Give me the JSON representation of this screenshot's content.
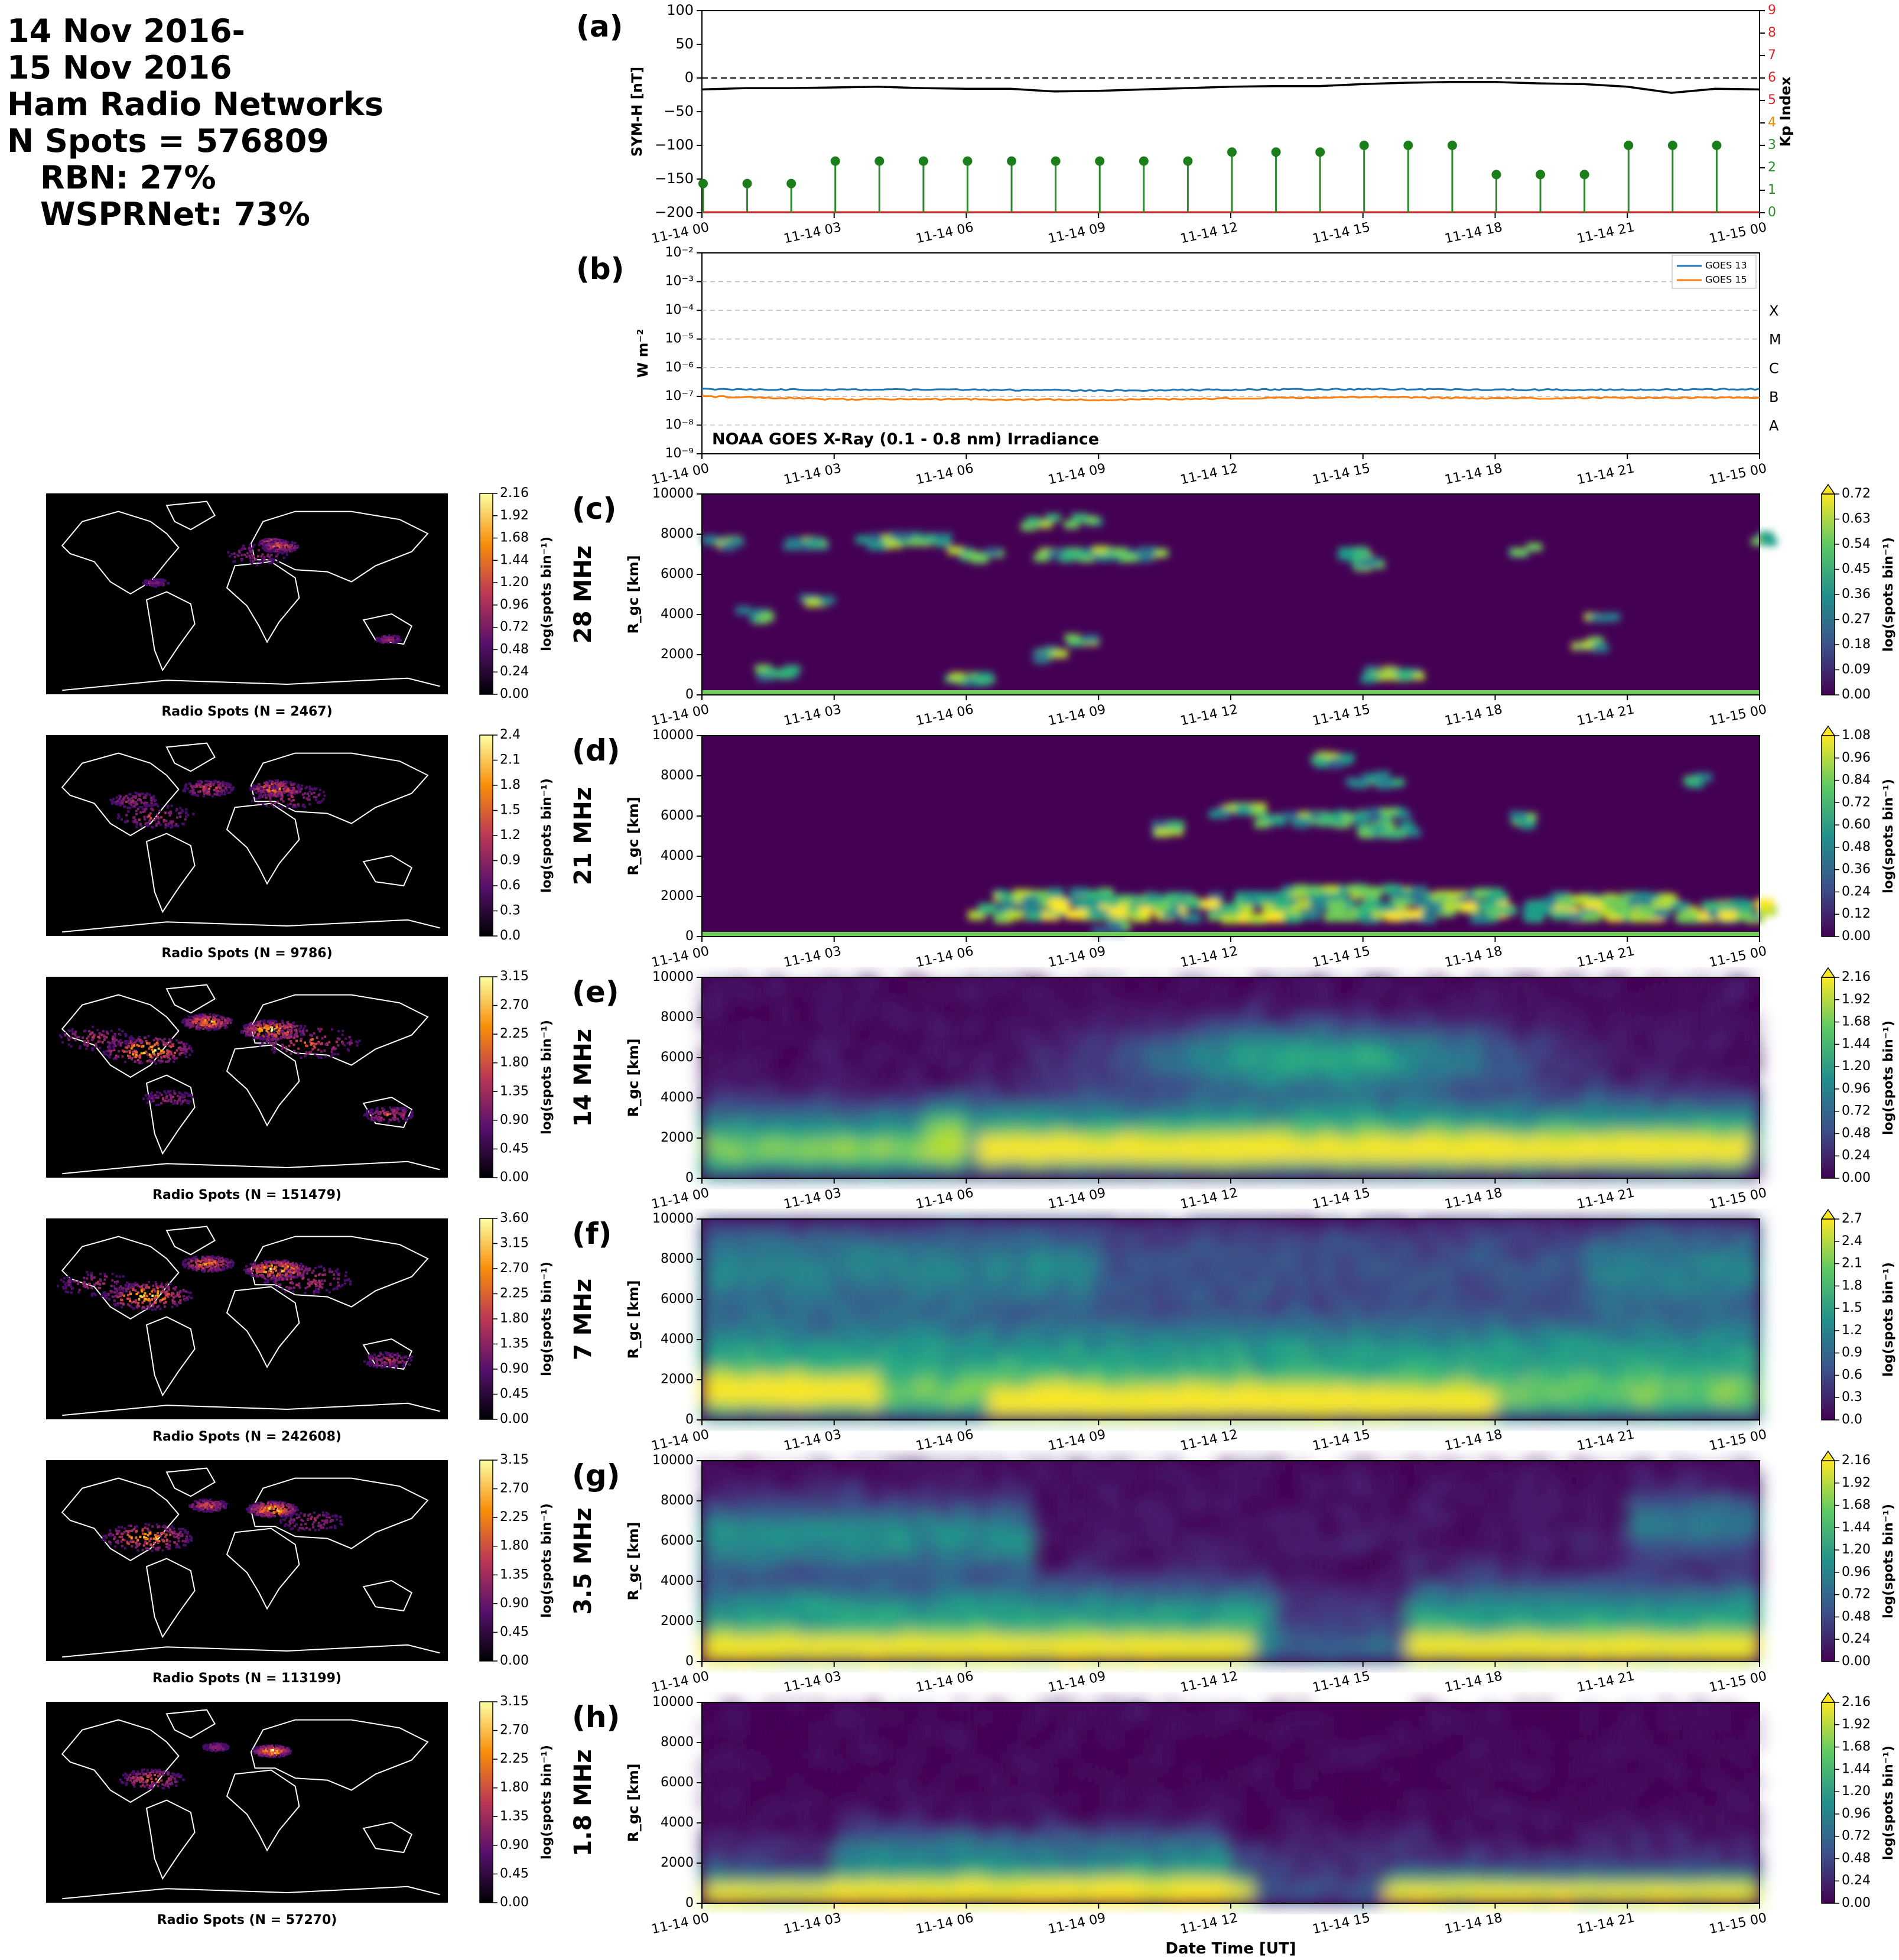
{
  "header": {
    "lines": [
      "14 Nov 2016-",
      "15 Nov 2016",
      "Ham Radio Networks",
      "N Spots = 576809"
    ],
    "indented": [
      "RBN: 27%",
      "WSPRNet: 73%"
    ]
  },
  "colors": {
    "symh": "#000000",
    "kp": "#2a8a2a",
    "goes13": "#1f77b4",
    "goes15": "#ff7f0e",
    "kp_axis": "#d62728",
    "map_coast": "#ffffff"
  },
  "chart_data": [
    {
      "id": "a",
      "type": "line",
      "panel_label": "(a)",
      "ylabel": "SYM-H [nT]",
      "ylim": [
        -200,
        100
      ],
      "yticks": [
        "100",
        "50",
        "0",
        "−50",
        "−100",
        "−150",
        "−200"
      ],
      "y2label": "Kp Index",
      "y2lim": [
        0,
        9
      ],
      "y2ticks": [
        "0",
        "1",
        "2",
        "3",
        "4",
        "5",
        "6",
        "7",
        "8",
        "9"
      ],
      "xticks": [
        "11-14 00",
        "11-14 03",
        "11-14 06",
        "11-14 09",
        "11-14 12",
        "11-14 15",
        "11-14 18",
        "11-14 21",
        "11-15 00"
      ],
      "symh_hours": [
        0,
        1,
        2,
        3,
        4,
        5,
        6,
        7,
        8,
        9,
        10,
        11,
        12,
        13,
        14,
        15,
        16,
        17,
        18,
        19,
        20,
        21,
        22,
        23,
        24
      ],
      "symh": [
        -17,
        -15,
        -15,
        -14,
        -13,
        -15,
        -16,
        -16,
        -20,
        -19,
        -17,
        -15,
        -13,
        -12,
        -12,
        -9,
        -7,
        -6,
        -6,
        -8,
        -9,
        -13,
        -22,
        -16,
        -17
      ],
      "kp_hours": [
        0,
        1,
        2,
        3,
        4,
        5,
        6,
        7,
        8,
        9,
        10,
        11,
        12,
        13,
        14,
        15,
        16,
        17,
        18,
        19,
        20,
        21,
        22,
        23
      ],
      "kp": [
        1.3,
        1.3,
        1.3,
        2.3,
        2.3,
        2.3,
        2.3,
        2.3,
        2.3,
        2.3,
        2.3,
        2.3,
        2.7,
        2.7,
        2.7,
        3.0,
        3.0,
        3.0,
        1.7,
        1.7,
        1.7,
        3.0,
        3.0,
        3.0
      ]
    },
    {
      "id": "b",
      "type": "line",
      "panel_label": "(b)",
      "title": "NOAA GOES X-Ray (0.1 - 0.8 nm) Irradiance",
      "ylabel": "W m⁻²",
      "ylim_log": [
        -9,
        -2
      ],
      "yticks": [
        "10⁻²",
        "10⁻³",
        "10⁻⁴",
        "10⁻⁵",
        "10⁻⁶",
        "10⁻⁷",
        "10⁻⁸",
        "10⁻⁹"
      ],
      "classes": [
        "X",
        "M",
        "C",
        "B",
        "A"
      ],
      "xticks": [
        "11-14 00",
        "11-14 03",
        "11-14 06",
        "11-14 09",
        "11-14 12",
        "11-14 15",
        "11-14 18",
        "11-14 21",
        "11-15 00"
      ],
      "series": [
        {
          "name": "GOES 13",
          "hours": [
            0,
            3,
            6,
            9,
            12,
            15,
            18,
            21,
            24
          ],
          "values": [
            1.8e-07,
            1.7e-07,
            1.7e-07,
            1.6e-07,
            1.7e-07,
            1.8e-07,
            1.7e-07,
            1.7e-07,
            1.8e-07
          ]
        },
        {
          "name": "GOES 15",
          "hours": [
            0,
            3,
            6,
            9,
            12,
            15,
            18,
            21,
            24
          ],
          "values": [
            1e-07,
            8e-08,
            8e-08,
            7.5e-08,
            8.5e-08,
            9.5e-08,
            8.5e-08,
            9e-08,
            9e-08
          ]
        }
      ]
    },
    {
      "id": "maps",
      "type": "heatmap",
      "cbar_label": "log(spots bin⁻¹)",
      "panels": [
        {
          "caption": "Radio Spots (N = 2467)",
          "ticks": [
            "0.00",
            "0.24",
            "0.48",
            "0.72",
            "0.96",
            "1.20",
            "1.44",
            "1.68",
            "1.92",
            "2.16"
          ]
        },
        {
          "caption": "Radio Spots (N = 9786)",
          "ticks": [
            "0.0",
            "0.3",
            "0.6",
            "0.9",
            "1.2",
            "1.5",
            "1.8",
            "2.1",
            "2.4"
          ]
        },
        {
          "caption": "Radio Spots (N = 151479)",
          "ticks": [
            "0.00",
            "0.45",
            "0.90",
            "1.35",
            "1.80",
            "2.25",
            "2.70",
            "3.15"
          ]
        },
        {
          "caption": "Radio Spots (N = 242608)",
          "ticks": [
            "0.00",
            "0.45",
            "0.90",
            "1.35",
            "1.80",
            "2.25",
            "2.70",
            "3.15",
            "3.60"
          ]
        },
        {
          "caption": "Radio Spots (N = 113199)",
          "ticks": [
            "0.00",
            "0.45",
            "0.90",
            "1.35",
            "1.80",
            "2.25",
            "2.70",
            "3.15"
          ]
        },
        {
          "caption": "Radio Spots (N = 57270)",
          "ticks": [
            "0.00",
            "0.45",
            "0.90",
            "1.35",
            "1.80",
            "2.25",
            "2.70",
            "3.15"
          ]
        }
      ]
    },
    {
      "id": "bands",
      "type": "heatmap",
      "ylabel": "R_gc [km]",
      "yticks": [
        "0",
        "2000",
        "4000",
        "6000",
        "8000",
        "10000"
      ],
      "xticks": [
        "11-14 00",
        "11-14 03",
        "11-14 06",
        "11-14 09",
        "11-14 12",
        "11-14 15",
        "11-14 18",
        "11-14 21",
        "11-15 00"
      ],
      "xlabel": "Date Time [UT]",
      "cbar_label": "log(spots bin⁻¹)",
      "panels": [
        {
          "panel_label": "(c)",
          "band": "28 MHz",
          "ticks": [
            "0.00",
            "0.09",
            "0.18",
            "0.27",
            "0.36",
            "0.45",
            "0.54",
            "0.63",
            "0.72"
          ],
          "cmax": 0.72
        },
        {
          "panel_label": "(d)",
          "band": "21 MHz",
          "ticks": [
            "0.00",
            "0.12",
            "0.24",
            "0.36",
            "0.48",
            "0.60",
            "0.72",
            "0.84",
            "0.96",
            "1.08"
          ],
          "cmax": 1.08
        },
        {
          "panel_label": "(e)",
          "band": "14 MHz",
          "ticks": [
            "0.00",
            "0.24",
            "0.48",
            "0.72",
            "0.96",
            "1.20",
            "1.44",
            "1.68",
            "1.92",
            "2.16"
          ],
          "cmax": 2.16
        },
        {
          "panel_label": "(f)",
          "band": "7 MHz",
          "ticks": [
            "0.0",
            "0.3",
            "0.6",
            "0.9",
            "1.2",
            "1.5",
            "1.8",
            "2.1",
            "2.4",
            "2.7"
          ],
          "cmax": 2.7
        },
        {
          "panel_label": "(g)",
          "band": "3.5 MHz",
          "ticks": [
            "0.00",
            "0.24",
            "0.48",
            "0.72",
            "0.96",
            "1.20",
            "1.44",
            "1.68",
            "1.92",
            "2.16"
          ],
          "cmax": 2.16
        },
        {
          "panel_label": "(h)",
          "band": "1.8 MHz",
          "ticks": [
            "0.00",
            "0.24",
            "0.48",
            "0.72",
            "0.96",
            "1.20",
            "1.44",
            "1.68",
            "1.92",
            "2.16"
          ],
          "cmax": 2.16
        }
      ]
    }
  ]
}
